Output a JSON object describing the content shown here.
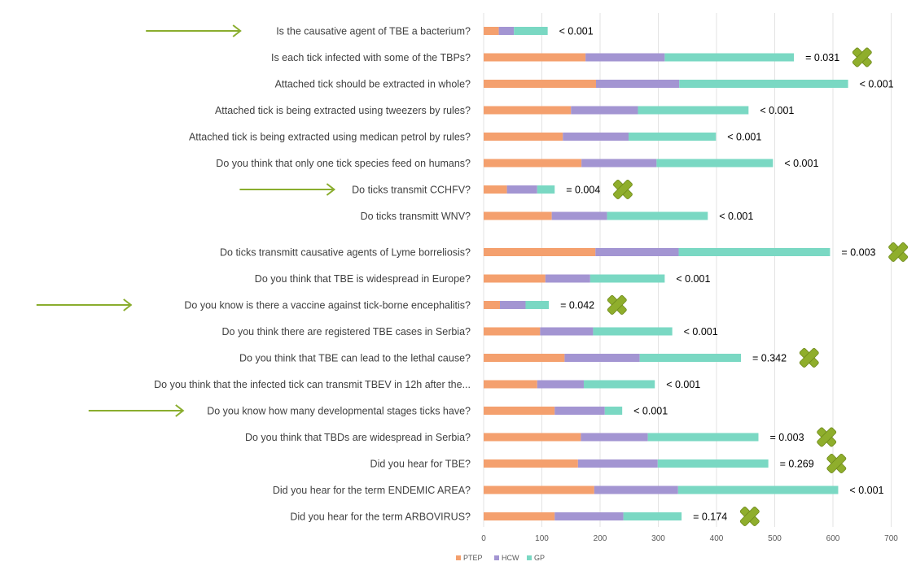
{
  "colors": {
    "PTEP": "#f4a06e",
    "HCW": "#a395d2",
    "GP": "#7ad8c3",
    "arrow": "#8aad2e",
    "cross": "#8fae2c",
    "grid": "#e3e3e3"
  },
  "chart_data": {
    "type": "bar",
    "orientation": "horizontal",
    "stacked": true,
    "title": "",
    "xlabel": "",
    "ylabel": "",
    "xlim": [
      0,
      700
    ],
    "xticks": [
      "0",
      "100",
      "200",
      "300",
      "400",
      "500",
      "600",
      "700"
    ],
    "grid": true,
    "legend_position": "bottom",
    "categories": [
      "Is the causative agent of TBE a bacterium?",
      "Is each tick infected with some of the TBPs?",
      "Attached tick should be extracted in whole?",
      "Attached tick is being extracted using tweezers by rules?",
      "Attached tick is being extracted using medican petrol by rules?",
      "Do you think that only one tick species feed on humans?",
      "Do ticks transmit CCHFV?",
      "Do ticks transmitt WNV?",
      "Do ticks transmitt causative agents of Lyme borreliosis?",
      "Do you think that TBE is widespread in Europe?",
      "Do you know is there a vaccine against tick-borne encephalitis?",
      "Do you think there are registered TBE cases in Serbia?",
      "Do you think that TBE can lead to the lethal cause?",
      "Do you think that the infected tick can transmit TBEV in 12h after the...",
      "Do you know how many developmental stages ticks have?",
      "Do you think that TBDs are widespread in Serbia?",
      "Did you hear for TBE?",
      "Did you hear for the term ENDEMIC AREA?",
      "Did you hear for the term ARBOVIRUS?"
    ],
    "series": [
      {
        "name": "PTEP",
        "values": [
          26,
          175,
          193,
          150,
          136,
          168,
          40,
          117,
          192,
          106,
          28,
          97,
          139,
          92,
          122,
          167,
          162,
          190,
          122
        ]
      },
      {
        "name": "HCW",
        "values": [
          26,
          136,
          143,
          115,
          113,
          129,
          52,
          95,
          143,
          77,
          44,
          91,
          129,
          80,
          86,
          115,
          137,
          144,
          118
        ]
      },
      {
        "name": "GP",
        "values": [
          58,
          222,
          290,
          190,
          150,
          200,
          30,
          173,
          260,
          128,
          40,
          136,
          174,
          122,
          30,
          190,
          190,
          275,
          100
        ]
      }
    ],
    "annotations": {
      "p_values": [
        "< 0.001",
        "= 0.031",
        "< 0.001",
        "< 0.001",
        "< 0.001",
        "< 0.001",
        "= 0.004",
        "< 0.001",
        "= 0.003",
        "< 0.001",
        "= 0.042",
        "< 0.001",
        "= 0.342",
        "< 0.001",
        "< 0.001",
        "= 0.003",
        "= 0.269",
        "< 0.001",
        "= 0.174"
      ],
      "crossed": [
        false,
        true,
        false,
        false,
        false,
        false,
        true,
        false,
        true,
        false,
        true,
        false,
        true,
        false,
        false,
        true,
        true,
        false,
        true
      ],
      "arrowed": [
        true,
        false,
        false,
        false,
        false,
        false,
        true,
        false,
        false,
        false,
        true,
        false,
        false,
        false,
        true,
        false,
        false,
        false,
        false
      ]
    }
  }
}
